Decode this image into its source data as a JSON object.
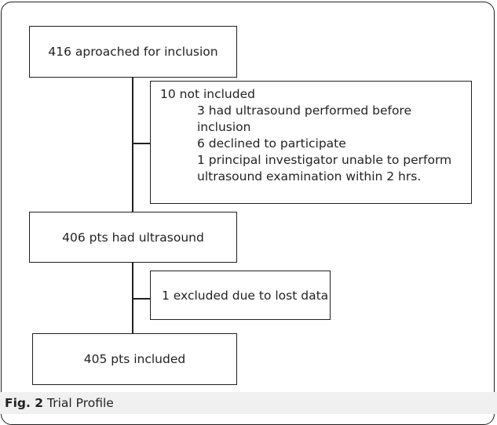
{
  "diagram": {
    "box_approached": "416 aproached for inclusion",
    "box_not_included": {
      "title": "10 not included",
      "reasons": [
        "3 had ultrasound performed before inclusion",
        "6 declined to participate",
        "1 principal investigator unable to perform",
        "ultrasound examination within 2 hrs."
      ]
    },
    "box_had_ultrasound": "406 pts had ultrasound",
    "box_excluded": "1 excluded due to lost data",
    "box_included": "405 pts included"
  },
  "caption": {
    "label": "Fig. 2",
    "text": "Trial Profile"
  }
}
